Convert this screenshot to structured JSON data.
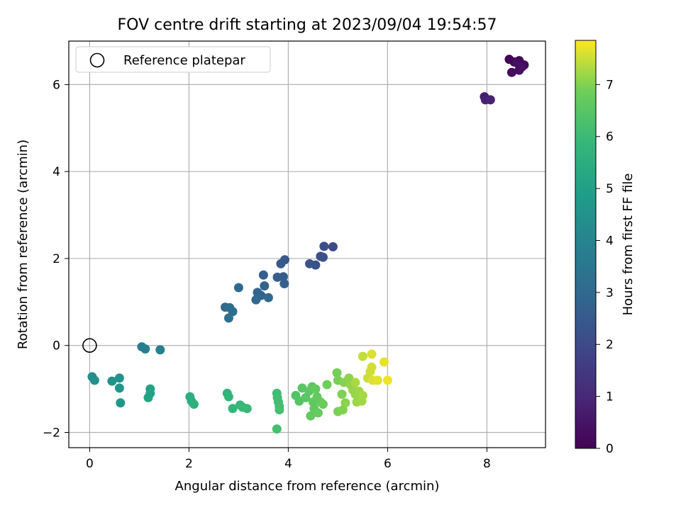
{
  "chart_data": {
    "type": "scatter",
    "title": "FOV centre drift starting at 2023/09/04 19:54:57",
    "xlabel": "Angular distance from reference (arcmin)",
    "ylabel": "Rotation from reference (arcmin)",
    "xlim": [
      -0.42,
      9.18
    ],
    "ylim": [
      -2.35,
      7.0
    ],
    "x_ticks": [
      0,
      2,
      4,
      6,
      8
    ],
    "y_ticks": [
      -2,
      0,
      2,
      4,
      6
    ],
    "grid": true,
    "legend": {
      "position": "top-left",
      "entries": [
        "Reference platepar"
      ]
    },
    "reference_point": {
      "x": 0,
      "y": 0
    },
    "colorbar": {
      "label": "Hours from first FF file",
      "colormap": "viridis",
      "range": [
        0,
        7.85
      ],
      "ticks": [
        0,
        1,
        2,
        3,
        4,
        5,
        6,
        7
      ]
    },
    "points": [
      {
        "x": 8.45,
        "y": 6.58,
        "c": 0.05
      },
      {
        "x": 8.55,
        "y": 6.52,
        "c": 0.1
      },
      {
        "x": 8.65,
        "y": 6.55,
        "c": 0.15
      },
      {
        "x": 8.75,
        "y": 6.45,
        "c": 0.2
      },
      {
        "x": 8.5,
        "y": 6.28,
        "c": 0.25
      },
      {
        "x": 8.65,
        "y": 6.33,
        "c": 0.3
      },
      {
        "x": 8.6,
        "y": 6.5,
        "c": 0.35
      },
      {
        "x": 8.7,
        "y": 6.4,
        "c": 0.4
      },
      {
        "x": 7.95,
        "y": 5.72,
        "c": 0.75
      },
      {
        "x": 7.97,
        "y": 5.65,
        "c": 0.8
      },
      {
        "x": 8.07,
        "y": 5.65,
        "c": 0.85
      },
      {
        "x": 4.9,
        "y": 2.27,
        "c": 2.05
      },
      {
        "x": 4.72,
        "y": 2.28,
        "c": 2.1
      },
      {
        "x": 4.65,
        "y": 2.05,
        "c": 2.15
      },
      {
        "x": 4.7,
        "y": 2.03,
        "c": 2.2
      },
      {
        "x": 4.55,
        "y": 1.85,
        "c": 2.25
      },
      {
        "x": 4.43,
        "y": 1.88,
        "c": 2.3
      },
      {
        "x": 3.93,
        "y": 1.97,
        "c": 2.45
      },
      {
        "x": 3.85,
        "y": 1.88,
        "c": 2.5
      },
      {
        "x": 3.9,
        "y": 1.58,
        "c": 2.55
      },
      {
        "x": 3.78,
        "y": 1.57,
        "c": 2.6
      },
      {
        "x": 3.92,
        "y": 1.42,
        "c": 2.65
      },
      {
        "x": 3.5,
        "y": 1.62,
        "c": 2.7
      },
      {
        "x": 3.52,
        "y": 1.37,
        "c": 2.75
      },
      {
        "x": 3.45,
        "y": 1.15,
        "c": 2.8
      },
      {
        "x": 3.38,
        "y": 1.22,
        "c": 2.85
      },
      {
        "x": 3.6,
        "y": 1.1,
        "c": 2.9
      },
      {
        "x": 3.35,
        "y": 1.05,
        "c": 2.95
      },
      {
        "x": 3.0,
        "y": 1.33,
        "c": 3.0
      },
      {
        "x": 2.73,
        "y": 0.88,
        "c": 3.05
      },
      {
        "x": 2.82,
        "y": 0.87,
        "c": 3.1
      },
      {
        "x": 2.88,
        "y": 0.78,
        "c": 3.15
      },
      {
        "x": 2.8,
        "y": 0.63,
        "c": 3.2
      },
      {
        "x": 1.05,
        "y": -0.03,
        "c": 3.75
      },
      {
        "x": 1.12,
        "y": -0.08,
        "c": 3.8
      },
      {
        "x": 1.42,
        "y": -0.1,
        "c": 3.85
      },
      {
        "x": 0.05,
        "y": -0.72,
        "c": 4.35
      },
      {
        "x": 0.1,
        "y": -0.8,
        "c": 4.4
      },
      {
        "x": 0.45,
        "y": -0.82,
        "c": 4.5
      },
      {
        "x": 0.6,
        "y": -0.75,
        "c": 4.55
      },
      {
        "x": 0.6,
        "y": -0.98,
        "c": 4.6
      },
      {
        "x": 0.62,
        "y": -1.32,
        "c": 4.65
      },
      {
        "x": 1.22,
        "y": -1.0,
        "c": 5.05
      },
      {
        "x": 1.22,
        "y": -1.1,
        "c": 5.1
      },
      {
        "x": 1.18,
        "y": -1.2,
        "c": 5.15
      },
      {
        "x": 2.02,
        "y": -1.18,
        "c": 5.5
      },
      {
        "x": 2.05,
        "y": -1.28,
        "c": 5.55
      },
      {
        "x": 2.1,
        "y": -1.35,
        "c": 5.6
      },
      {
        "x": 2.77,
        "y": -1.1,
        "c": 5.75
      },
      {
        "x": 2.8,
        "y": -1.18,
        "c": 5.8
      },
      {
        "x": 2.88,
        "y": -1.45,
        "c": 5.85
      },
      {
        "x": 3.03,
        "y": -1.37,
        "c": 5.9
      },
      {
        "x": 3.08,
        "y": -1.42,
        "c": 5.92
      },
      {
        "x": 3.17,
        "y": -1.45,
        "c": 5.95
      },
      {
        "x": 3.77,
        "y": -1.1,
        "c": 6.05
      },
      {
        "x": 3.78,
        "y": -1.2,
        "c": 6.1
      },
      {
        "x": 3.8,
        "y": -1.3,
        "c": 6.12
      },
      {
        "x": 3.82,
        "y": -1.4,
        "c": 6.15
      },
      {
        "x": 3.82,
        "y": -1.48,
        "c": 6.18
      },
      {
        "x": 3.77,
        "y": -1.92,
        "c": 6.2
      },
      {
        "x": 4.15,
        "y": -1.15,
        "c": 6.4
      },
      {
        "x": 4.22,
        "y": -1.28,
        "c": 6.45
      },
      {
        "x": 4.28,
        "y": -0.98,
        "c": 6.5
      },
      {
        "x": 4.35,
        "y": -1.2,
        "c": 6.52
      },
      {
        "x": 4.42,
        "y": -1.05,
        "c": 6.55
      },
      {
        "x": 4.48,
        "y": -0.95,
        "c": 6.58
      },
      {
        "x": 4.5,
        "y": -1.3,
        "c": 6.6
      },
      {
        "x": 4.52,
        "y": -1.45,
        "c": 6.62
      },
      {
        "x": 4.45,
        "y": -1.62,
        "c": 6.65
      },
      {
        "x": 4.55,
        "y": -1.0,
        "c": 6.68
      },
      {
        "x": 4.58,
        "y": -1.18,
        "c": 6.7
      },
      {
        "x": 4.6,
        "y": -1.55,
        "c": 6.72
      },
      {
        "x": 4.65,
        "y": -1.3,
        "c": 6.75
      },
      {
        "x": 4.7,
        "y": -1.35,
        "c": 6.78
      },
      {
        "x": 4.78,
        "y": -0.9,
        "c": 6.85
      },
      {
        "x": 4.98,
        "y": -0.63,
        "c": 6.9
      },
      {
        "x": 5.0,
        "y": -0.8,
        "c": 6.92
      },
      {
        "x": 5.0,
        "y": -1.52,
        "c": 6.95
      },
      {
        "x": 5.08,
        "y": -1.12,
        "c": 6.97
      },
      {
        "x": 5.1,
        "y": -1.48,
        "c": 7.0
      },
      {
        "x": 5.12,
        "y": -0.85,
        "c": 7.02
      },
      {
        "x": 5.15,
        "y": -1.32,
        "c": 7.05
      },
      {
        "x": 5.22,
        "y": -0.75,
        "c": 7.08
      },
      {
        "x": 5.25,
        "y": -0.9,
        "c": 7.1
      },
      {
        "x": 5.3,
        "y": -1.02,
        "c": 7.12
      },
      {
        "x": 5.35,
        "y": -1.12,
        "c": 7.15
      },
      {
        "x": 5.38,
        "y": -1.3,
        "c": 7.18
      },
      {
        "x": 5.42,
        "y": -1.05,
        "c": 7.2
      },
      {
        "x": 5.48,
        "y": -1.28,
        "c": 7.22
      },
      {
        "x": 5.5,
        "y": -1.15,
        "c": 7.25
      },
      {
        "x": 5.35,
        "y": -0.85,
        "c": 7.28
      },
      {
        "x": 5.5,
        "y": -0.25,
        "c": 7.45
      },
      {
        "x": 5.6,
        "y": -0.75,
        "c": 7.5
      },
      {
        "x": 5.65,
        "y": -0.6,
        "c": 7.52
      },
      {
        "x": 5.68,
        "y": -0.5,
        "c": 7.55
      },
      {
        "x": 5.68,
        "y": -0.2,
        "c": 7.6
      },
      {
        "x": 5.7,
        "y": -0.8,
        "c": 7.62
      },
      {
        "x": 5.8,
        "y": -0.8,
        "c": 7.65
      },
      {
        "x": 5.93,
        "y": -0.38,
        "c": 7.7
      },
      {
        "x": 6.0,
        "y": -0.8,
        "c": 7.75
      }
    ]
  }
}
